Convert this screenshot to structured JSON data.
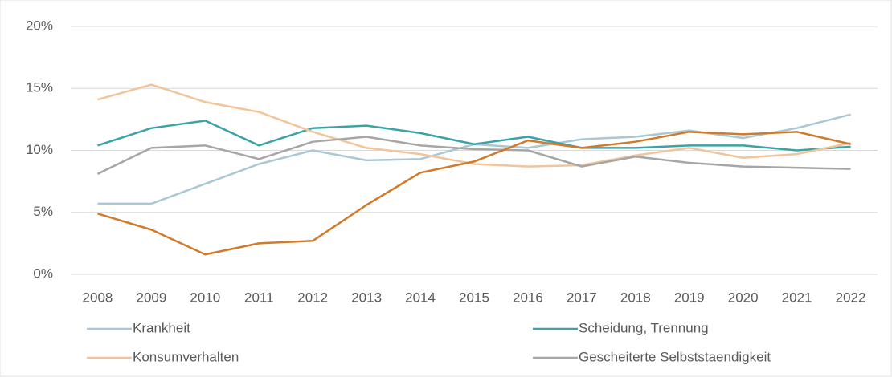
{
  "chart_data": {
    "type": "line",
    "categories": [
      "2008",
      "2009",
      "2010",
      "2011",
      "2012",
      "2013",
      "2014",
      "2015",
      "2016",
      "2017",
      "2018",
      "2019",
      "2020",
      "2021",
      "2022"
    ],
    "series": [
      {
        "name": "Krankheit",
        "color": "#a9c8d3",
        "values": [
          5.7,
          5.7,
          7.3,
          8.9,
          10.0,
          9.2,
          9.3,
          10.5,
          10.2,
          10.9,
          11.1,
          11.6,
          11.0,
          11.8,
          12.9
        ]
      },
      {
        "name": "Scheidung, Trennung",
        "color": "#3aa3a8",
        "values": [
          10.4,
          11.8,
          12.4,
          10.4,
          11.8,
          12.0,
          11.4,
          10.5,
          11.1,
          10.2,
          10.2,
          10.4,
          10.4,
          10.0,
          10.3
        ]
      },
      {
        "name": "Konsumverhalten",
        "color": "#f2c49a",
        "values": [
          14.1,
          15.3,
          13.9,
          13.1,
          11.5,
          10.2,
          9.7,
          8.9,
          8.7,
          8.8,
          9.6,
          10.2,
          9.4,
          9.7,
          10.6
        ]
      },
      {
        "name": "Gescheiterte Selbststaendigkeit",
        "color": "#a6a6a6",
        "values": [
          8.1,
          10.2,
          10.4,
          9.3,
          10.7,
          11.1,
          10.4,
          10.1,
          10.0,
          8.7,
          9.5,
          9.0,
          8.7,
          8.6,
          8.5
        ]
      },
      {
        "color": "#d07a2a",
        "values": [
          4.9,
          3.6,
          1.6,
          2.5,
          2.7,
          5.6,
          8.2,
          9.1,
          10.8,
          10.2,
          10.7,
          11.5,
          11.3,
          11.5,
          10.5
        ]
      }
    ],
    "ylim": [
      0,
      20
    ],
    "yticks": [
      {
        "value": 0,
        "label": "0%"
      },
      {
        "value": 5,
        "label": "5%"
      },
      {
        "value": 10,
        "label": "10%"
      },
      {
        "value": 15,
        "label": "15%"
      },
      {
        "value": 20,
        "label": "20%"
      }
    ],
    "grid": true
  }
}
